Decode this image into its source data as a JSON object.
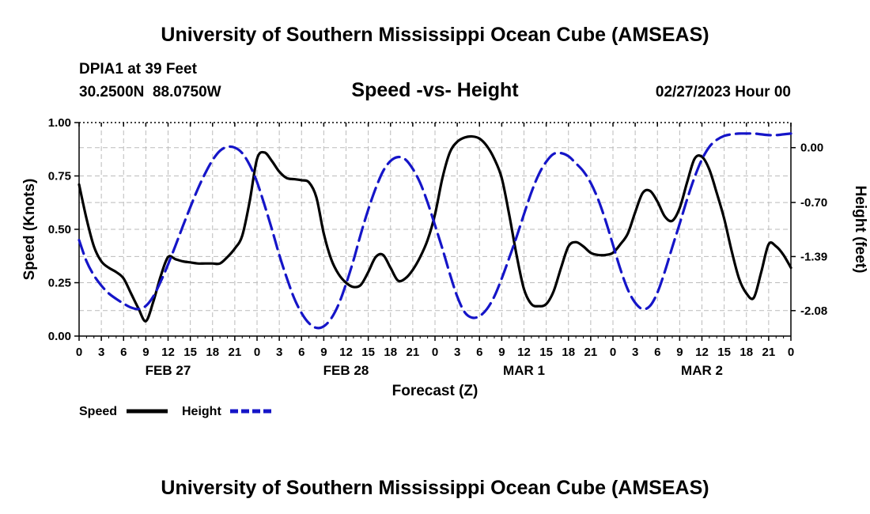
{
  "page": {
    "title_top": "University of Southern Mississippi Ocean Cube (AMSEAS)",
    "title_bottom": "University of Southern Mississippi Ocean Cube (AMSEAS)",
    "station": "DPIA1 at 39 Feet",
    "coords": "30.2500N  88.0750W",
    "datetime": "02/27/2023 Hour 00"
  },
  "colors": {
    "speed": "#000000",
    "height": "#1515c8",
    "grid": "#bbbbbb"
  },
  "chart_data": {
    "type": "line",
    "title": "Speed -vs- Height",
    "xlabel": "Forecast (Z)",
    "ylabel": "Speed (Knots)",
    "y2label": "Height (feet)",
    "xlim": [
      0,
      96
    ],
    "ylim": [
      0,
      1.0
    ],
    "y2lim": [
      -2.405,
      0.32
    ],
    "xticks": [
      0,
      3,
      6,
      9,
      12,
      15,
      18,
      21,
      24,
      27,
      30,
      33,
      36,
      39,
      42,
      45,
      48,
      51,
      54,
      57,
      60,
      63,
      66,
      69,
      72,
      75,
      78,
      81,
      84,
      87,
      90,
      93,
      96
    ],
    "xtick_labels": [
      "0",
      "3",
      "6",
      "9",
      "12",
      "15",
      "18",
      "21",
      "0",
      "3",
      "6",
      "9",
      "12",
      "15",
      "18",
      "21",
      "0",
      "3",
      "6",
      "9",
      "12",
      "15",
      "18",
      "21",
      "0",
      "3",
      "6",
      "9",
      "12",
      "15",
      "18",
      "21",
      "0"
    ],
    "date_labels": [
      {
        "x": 12,
        "label": "FEB 27"
      },
      {
        "x": 36,
        "label": "FEB 28"
      },
      {
        "x": 60,
        "label": "MAR 1"
      },
      {
        "x": 84,
        "label": "MAR 2"
      }
    ],
    "yticks": [
      0,
      0.25,
      0.5,
      0.75,
      1.0
    ],
    "ytick_labels": [
      "0.00",
      "0.25",
      "0.50",
      "0.75",
      "1.00"
    ],
    "y2ticks": [
      0,
      -0.7,
      -1.39,
      -2.08
    ],
    "y2tick_labels": [
      "0.00",
      "-0.70",
      "-1.39",
      "-2.08"
    ],
    "series": [
      {
        "name": "Speed",
        "axis": "left",
        "x": [
          0,
          1,
          2,
          3,
          4,
          5,
          6,
          7,
          8,
          9,
          10,
          11,
          12,
          13,
          14,
          15,
          16,
          17,
          18,
          19,
          20,
          21,
          22,
          23,
          24,
          25,
          26,
          27,
          28,
          29,
          30,
          31,
          32,
          33,
          34,
          35,
          36,
          37,
          38,
          39,
          40,
          41,
          42,
          43,
          44,
          45,
          46,
          47,
          48,
          49,
          50,
          51,
          52,
          53,
          54,
          55,
          56,
          57,
          58,
          59,
          60,
          61,
          62,
          63,
          64,
          65,
          66,
          67,
          68,
          69,
          70,
          71,
          72,
          73,
          74,
          75,
          76,
          77,
          78,
          79,
          80,
          81,
          82,
          83,
          84,
          85,
          86,
          87,
          88,
          89,
          90,
          91,
          92,
          93,
          94,
          95,
          96
        ],
        "values": [
          0.71,
          0.55,
          0.42,
          0.35,
          0.32,
          0.3,
          0.27,
          0.2,
          0.13,
          0.07,
          0.16,
          0.28,
          0.37,
          0.36,
          0.35,
          0.345,
          0.34,
          0.34,
          0.34,
          0.34,
          0.37,
          0.41,
          0.47,
          0.63,
          0.83,
          0.86,
          0.82,
          0.77,
          0.74,
          0.735,
          0.73,
          0.72,
          0.65,
          0.48,
          0.36,
          0.29,
          0.25,
          0.23,
          0.24,
          0.3,
          0.37,
          0.38,
          0.32,
          0.26,
          0.27,
          0.31,
          0.37,
          0.45,
          0.57,
          0.74,
          0.86,
          0.91,
          0.93,
          0.935,
          0.925,
          0.89,
          0.83,
          0.74,
          0.57,
          0.38,
          0.22,
          0.15,
          0.14,
          0.15,
          0.21,
          0.32,
          0.42,
          0.44,
          0.42,
          0.39,
          0.38,
          0.38,
          0.39,
          0.43,
          0.48,
          0.58,
          0.67,
          0.68,
          0.63,
          0.56,
          0.54,
          0.6,
          0.72,
          0.83,
          0.84,
          0.78,
          0.67,
          0.55,
          0.4,
          0.27,
          0.2,
          0.18,
          0.3,
          0.43,
          0.42,
          0.38,
          0.32
        ],
        "style": "solid"
      },
      {
        "name": "Height",
        "axis": "right",
        "x": [
          0,
          1,
          2,
          3,
          4,
          5,
          6,
          7,
          8,
          9,
          10,
          11,
          12,
          13,
          14,
          15,
          16,
          17,
          18,
          19,
          20,
          21,
          22,
          23,
          24,
          25,
          26,
          27,
          28,
          29,
          30,
          31,
          32,
          33,
          34,
          35,
          36,
          37,
          38,
          39,
          40,
          41,
          42,
          43,
          44,
          45,
          46,
          47,
          48,
          49,
          50,
          51,
          52,
          53,
          54,
          55,
          56,
          57,
          58,
          59,
          60,
          61,
          62,
          63,
          64,
          65,
          66,
          67,
          68,
          69,
          70,
          71,
          72,
          73,
          74,
          75,
          76,
          77,
          78,
          79,
          80,
          81,
          82,
          83,
          84,
          85,
          86,
          87,
          88,
          89,
          90,
          91,
          92,
          93,
          94,
          95,
          96
        ],
        "values": [
          -1.18,
          -1.45,
          -1.63,
          -1.76,
          -1.86,
          -1.93,
          -1.99,
          -2.04,
          -2.06,
          -2.02,
          -1.9,
          -1.71,
          -1.49,
          -1.25,
          -1.0,
          -0.76,
          -0.53,
          -0.33,
          -0.16,
          -0.04,
          0.01,
          0.0,
          -0.07,
          -0.22,
          -0.44,
          -0.73,
          -1.04,
          -1.37,
          -1.66,
          -1.92,
          -2.11,
          -2.24,
          -2.3,
          -2.28,
          -2.18,
          -2.0,
          -1.74,
          -1.44,
          -1.1,
          -0.79,
          -0.52,
          -0.3,
          -0.17,
          -0.12,
          -0.15,
          -0.27,
          -0.45,
          -0.7,
          -0.99,
          -1.29,
          -1.61,
          -1.9,
          -2.1,
          -2.17,
          -2.15,
          -2.06,
          -1.9,
          -1.67,
          -1.41,
          -1.14,
          -0.85,
          -0.57,
          -0.34,
          -0.18,
          -0.08,
          -0.07,
          -0.11,
          -0.2,
          -0.3,
          -0.45,
          -0.66,
          -0.93,
          -1.24,
          -1.55,
          -1.81,
          -1.98,
          -2.06,
          -2.02,
          -1.85,
          -1.58,
          -1.27,
          -0.97,
          -0.66,
          -0.38,
          -0.15,
          0.01,
          0.1,
          0.15,
          0.17,
          0.18,
          0.18,
          0.18,
          0.17,
          0.16,
          0.16,
          0.17,
          0.18
        ],
        "style": "dashed"
      }
    ],
    "legend": [
      "Speed",
      "Height"
    ],
    "legend_position": "bottom-left",
    "grid": true
  }
}
